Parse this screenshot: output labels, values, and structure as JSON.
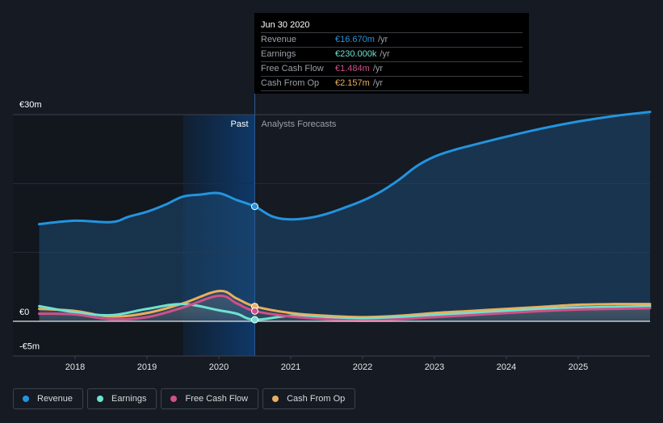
{
  "colors": {
    "background": "#151a23",
    "revenue": "#2394df",
    "earnings": "#6ee2d0",
    "free_cash_flow": "#d0508a",
    "cash_from_op": "#e8b05c",
    "past_highlight": "#0e3a6c"
  },
  "tooltip": {
    "date": "Jun 30 2020",
    "rows": [
      {
        "label": "Revenue",
        "value": "€16.670m",
        "unit": "/yr",
        "color": "#2394df"
      },
      {
        "label": "Earnings",
        "value": "€230.000k",
        "unit": "/yr",
        "color": "#6ee2d0"
      },
      {
        "label": "Free Cash Flow",
        "value": "€1.484m",
        "unit": "/yr",
        "color": "#d0508a"
      },
      {
        "label": "Cash From Op",
        "value": "€2.157m",
        "unit": "/yr",
        "color": "#e8b05c"
      }
    ]
  },
  "legend": [
    {
      "label": "Revenue",
      "color": "#2394df"
    },
    {
      "label": "Earnings",
      "color": "#6ee2d0"
    },
    {
      "label": "Free Cash Flow",
      "color": "#d0508a"
    },
    {
      "label": "Cash From Op",
      "color": "#e8b05c"
    }
  ],
  "chart_data": {
    "type": "area",
    "title": "",
    "xlabel": "",
    "ylabel": "",
    "y_unit": "€m",
    "ylim": [
      -5,
      30
    ],
    "xlim": [
      2017.25,
      2026.0
    ],
    "y_ticks": [
      {
        "value": 30,
        "label": "€30m"
      },
      {
        "value": 0,
        "label": "€0"
      },
      {
        "value": -5,
        "label": "-€5m"
      }
    ],
    "gridlines": [
      0,
      10,
      20,
      30
    ],
    "x_ticks": [
      2018,
      2019,
      2020,
      2021,
      2022,
      2023,
      2024,
      2025
    ],
    "x_tick_labels": [
      "2018",
      "2019",
      "2020",
      "2021",
      "2022",
      "2023",
      "2024",
      "2025"
    ],
    "divider_x": 2020.5,
    "past_highlight_range": [
      2019.5,
      2020.5
    ],
    "region_labels": {
      "past": "Past",
      "forecast": "Analysts Forecasts"
    },
    "legend_position": "bottom-left",
    "series": [
      {
        "name": "Revenue",
        "key": "revenue",
        "x": [
          2017.5,
          2018.0,
          2018.5,
          2018.75,
          2019.0,
          2019.25,
          2019.5,
          2019.75,
          2020.0,
          2020.25,
          2020.5,
          2020.75,
          2021.0,
          2021.25,
          2021.5,
          2021.75,
          2022.0,
          2022.25,
          2022.5,
          2022.75,
          2023.0,
          2023.25,
          2023.5,
          2024.0,
          2024.5,
          2025.0,
          2025.5,
          2026.0
        ],
        "values": [
          14.1,
          14.6,
          14.4,
          15.2,
          15.9,
          16.9,
          18.1,
          18.4,
          18.6,
          17.6,
          16.67,
          15.2,
          14.8,
          15.0,
          15.6,
          16.5,
          17.5,
          18.8,
          20.5,
          22.5,
          23.9,
          24.8,
          25.5,
          26.8,
          28.0,
          29.0,
          29.8,
          30.4
        ]
      },
      {
        "name": "Earnings",
        "key": "earnings",
        "x": [
          2017.5,
          2018.0,
          2018.5,
          2019.0,
          2019.5,
          2020.0,
          2020.25,
          2020.5,
          2021.0,
          2021.5,
          2022.0,
          2022.5,
          2023.0,
          2023.5,
          2024.0,
          2024.5,
          2025.0,
          2025.5,
          2026.0
        ],
        "values": [
          2.2,
          1.3,
          0.9,
          1.8,
          2.5,
          1.6,
          1.1,
          0.23,
          0.8,
          0.5,
          0.4,
          0.6,
          0.9,
          1.2,
          1.5,
          1.8,
          2.0,
          2.1,
          2.2
        ]
      },
      {
        "name": "Free Cash Flow",
        "key": "free_cash_flow",
        "x": [
          2017.5,
          2018.0,
          2018.5,
          2019.0,
          2019.5,
          2020.0,
          2020.25,
          2020.5,
          2021.0,
          2021.5,
          2022.0,
          2022.5,
          2023.0,
          2023.5,
          2024.0,
          2024.5,
          2025.0,
          2025.5,
          2026.0
        ],
        "values": [
          1.1,
          1.0,
          0.3,
          0.6,
          2.0,
          3.7,
          2.6,
          1.484,
          0.7,
          0.3,
          0.1,
          0.3,
          0.6,
          0.9,
          1.2,
          1.5,
          1.7,
          1.8,
          1.9
        ]
      },
      {
        "name": "Cash From Op",
        "key": "cash_from_op",
        "x": [
          2017.5,
          2018.0,
          2018.5,
          2019.0,
          2019.5,
          2020.0,
          2020.25,
          2020.5,
          2021.0,
          2021.5,
          2022.0,
          2022.5,
          2023.0,
          2023.5,
          2024.0,
          2024.5,
          2025.0,
          2025.5,
          2026.0
        ],
        "values": [
          1.8,
          1.5,
          0.7,
          1.2,
          2.6,
          4.4,
          3.3,
          2.157,
          1.2,
          0.8,
          0.6,
          0.8,
          1.2,
          1.5,
          1.8,
          2.1,
          2.4,
          2.5,
          2.5
        ]
      }
    ],
    "highlight_points": [
      {
        "series": "revenue",
        "x": 2020.5,
        "y": 16.67
      },
      {
        "series": "earnings",
        "x": 2020.5,
        "y": 0.23
      },
      {
        "series": "free_cash_flow",
        "x": 2020.5,
        "y": 1.484
      },
      {
        "series": "cash_from_op",
        "x": 2020.5,
        "y": 2.157
      }
    ]
  }
}
